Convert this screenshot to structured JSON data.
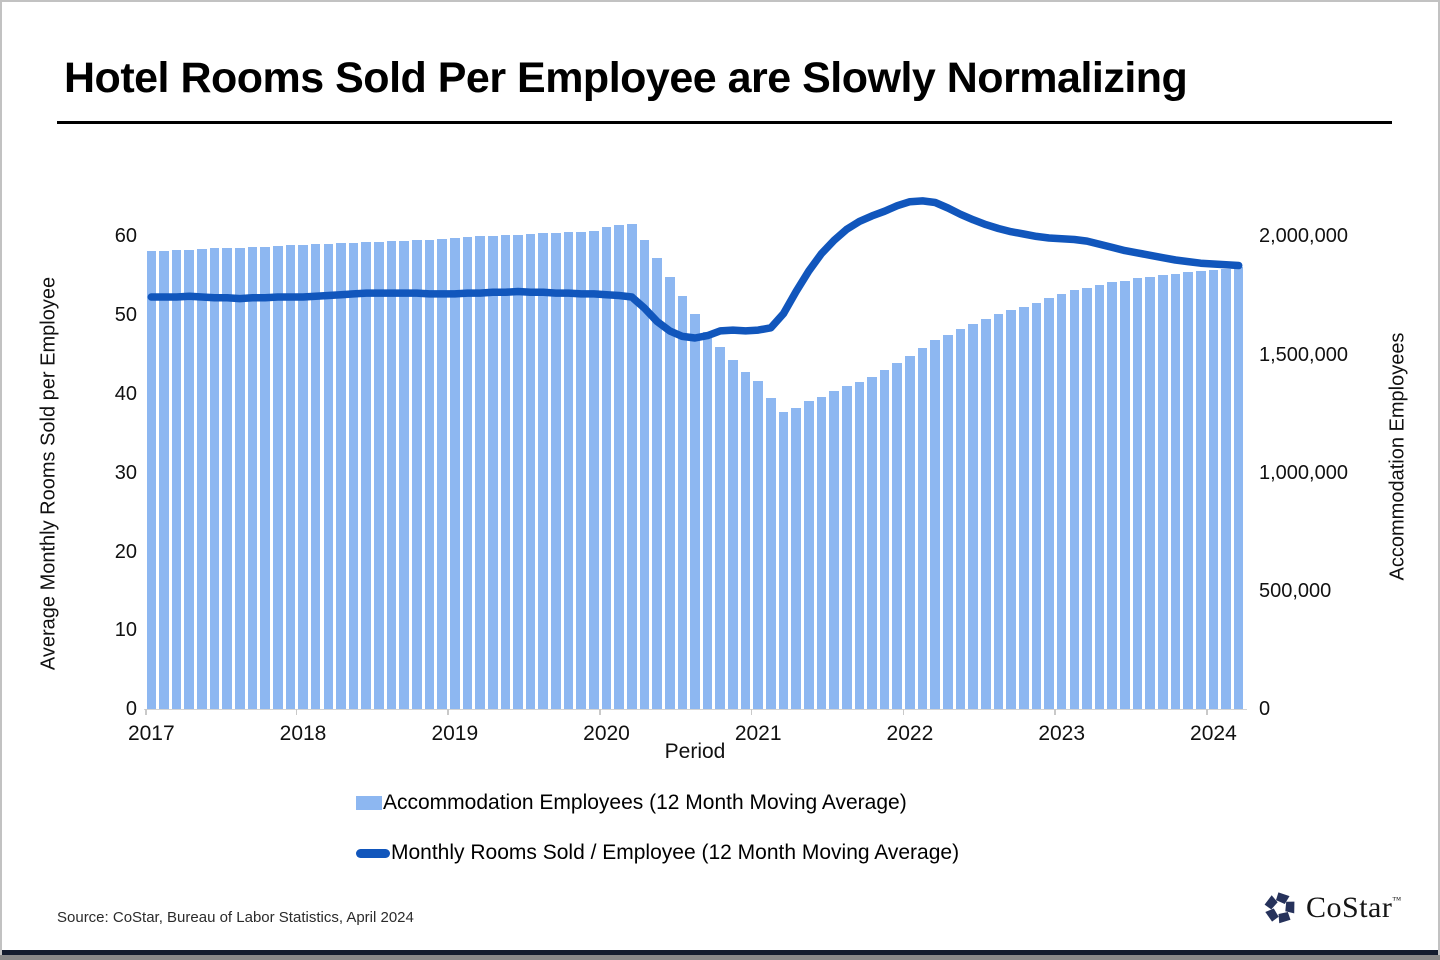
{
  "title": "Hotel Rooms Sold Per Employee are Slowly Normalizing",
  "source_note": "Source: CoStar, Bureau of Labor Statistics, April 2024",
  "logo": {
    "text": "CoStar",
    "tm": "™",
    "icon_color": "#26325b"
  },
  "colors": {
    "bar": "#8db7f1",
    "line": "#1156bc"
  },
  "legend": [
    {
      "label": "Accommodation Employees (12 Month Moving Average)",
      "swatch": "bar"
    },
    {
      "label": "Monthly Rooms Sold / Employee (12 Month Moving Average)",
      "swatch": "line"
    }
  ],
  "chart_data": {
    "type": "bar+line",
    "x": {
      "unit": "month",
      "start": "2017-01",
      "end": "2024-03",
      "axis_title": "Period",
      "year_labels": [
        "2017",
        "2018",
        "2019",
        "2020",
        "2021",
        "2022",
        "2023",
        "2024"
      ],
      "year_label_month_indices": [
        0,
        12,
        24,
        36,
        48,
        60,
        72,
        84
      ]
    },
    "left_axis": {
      "title": "Average Monthly Rooms Sold per Employee",
      "ticks": [
        0,
        10,
        20,
        30,
        40,
        50,
        60
      ],
      "drawn_max": 65
    },
    "right_axis": {
      "title": "Accommodation Employees",
      "tick_values": [
        0,
        500000,
        1000000,
        1500000,
        2000000
      ],
      "tick_labels": [
        "0",
        "500,000",
        "1,000,000",
        "1,500,000",
        "2,000,000"
      ],
      "max": 2000000,
      "equivalent_left_units": 60
    },
    "series": [
      {
        "name": "Accommodation Employees (12 Month Moving Average)",
        "type": "bar",
        "axis": "right",
        "color": "#8db7f1",
        "values": [
          1937000,
          1940000,
          1942000,
          1944000,
          1947000,
          1949000,
          1951000,
          1953000,
          1955000,
          1957000,
          1960000,
          1963000,
          1965000,
          1967000,
          1969000,
          1971000,
          1973000,
          1976000,
          1978000,
          1980000,
          1982000,
          1984000,
          1987000,
          1990000,
          1993000,
          1996000,
          2000000,
          2003000,
          2005000,
          2007000,
          2010000,
          2013000,
          2015000,
          2017000,
          2020000,
          2023000,
          2040000,
          2050000,
          2053000,
          1983000,
          1907000,
          1827000,
          1747000,
          1670000,
          1597000,
          1530000,
          1477000,
          1427000,
          1387000,
          1317000,
          1257000,
          1273000,
          1303000,
          1320000,
          1347000,
          1367000,
          1383000,
          1407000,
          1433000,
          1463000,
          1493000,
          1527000,
          1560000,
          1583000,
          1607000,
          1630000,
          1650000,
          1670000,
          1687000,
          1700000,
          1717000,
          1740000,
          1757000,
          1773000,
          1783000,
          1793000,
          1807000,
          1813000,
          1823000,
          1830000,
          1837000,
          1843000,
          1850000,
          1853000,
          1860000,
          1863000,
          1870000
        ]
      },
      {
        "name": "Monthly Rooms Sold / Employee (12 Month Moving Average)",
        "type": "line",
        "axis": "left",
        "color": "#1156bc",
        "values": [
          52.3,
          52.3,
          52.3,
          52.4,
          52.3,
          52.2,
          52.2,
          52.1,
          52.2,
          52.2,
          52.3,
          52.3,
          52.3,
          52.4,
          52.5,
          52.6,
          52.7,
          52.8,
          52.8,
          52.8,
          52.8,
          52.8,
          52.7,
          52.7,
          52.7,
          52.8,
          52.8,
          52.9,
          52.9,
          53.0,
          52.9,
          52.9,
          52.8,
          52.8,
          52.7,
          52.7,
          52.6,
          52.5,
          52.3,
          50.9,
          49.2,
          48.0,
          47.3,
          47.1,
          47.4,
          48.0,
          48.1,
          48.0,
          48.1,
          48.4,
          50.2,
          53.0,
          55.6,
          57.8,
          59.5,
          60.9,
          61.9,
          62.6,
          63.2,
          63.9,
          64.4,
          64.5,
          64.3,
          63.6,
          62.8,
          62.1,
          61.5,
          61.0,
          60.6,
          60.3,
          60.0,
          59.8,
          59.7,
          59.6,
          59.4,
          59.0,
          58.6,
          58.2,
          57.9,
          57.6,
          57.3,
          57.0,
          56.8,
          56.6,
          56.5,
          56.4,
          56.3
        ]
      }
    ]
  }
}
